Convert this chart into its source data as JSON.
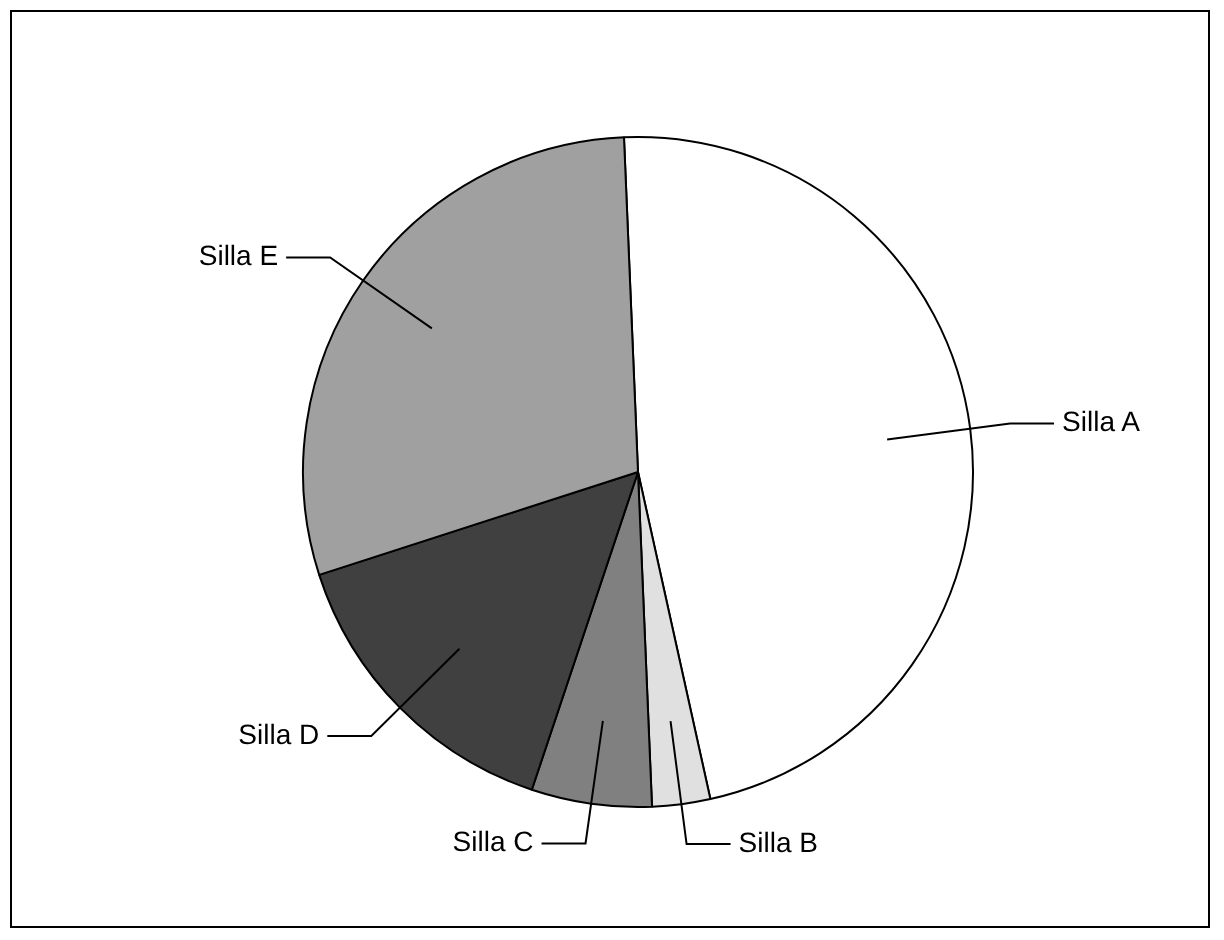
{
  "chart_data": {
    "type": "pie",
    "categories": [
      "Silla A",
      "Silla B",
      "Silla C",
      "Silla D",
      "Silla E"
    ],
    "values": [
      47.2,
      2.8,
      5.8,
      14.9,
      29.3
    ],
    "colors": [
      "#ffffff",
      "#e0e0e0",
      "#808080",
      "#404040",
      "#a0a0a0"
    ]
  }
}
